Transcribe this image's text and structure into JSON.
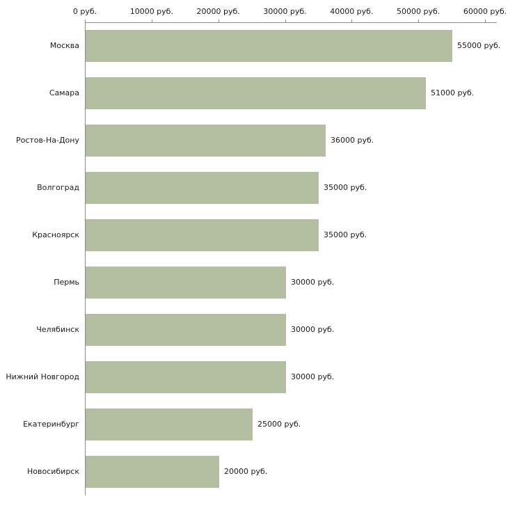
{
  "chart_data": {
    "type": "bar",
    "orientation": "horizontal",
    "title": "",
    "xlabel": "",
    "ylabel": "",
    "categories": [
      "Москва",
      "Самара",
      "Ростов-На-Дону",
      "Волгоград",
      "Красноярск",
      "Пермь",
      "Челябинск",
      "Нижний Новгород",
      "Екатеринбург",
      "Новосибирск"
    ],
    "values": [
      55000,
      51000,
      36000,
      35000,
      35000,
      30000,
      30000,
      30000,
      25000,
      20000
    ],
    "value_labels": [
      "55000 руб.",
      "51000 руб.",
      "36000 руб.",
      "35000 руб.",
      "35000 руб.",
      "30000 руб.",
      "30000 руб.",
      "30000 руб.",
      "25000 руб.",
      "20000 руб."
    ],
    "x_ticks": [
      0,
      10000,
      20000,
      30000,
      40000,
      50000,
      60000
    ],
    "x_tick_labels": [
      "0 руб.",
      "10000 руб.",
      "20000 руб.",
      "30000 руб.",
      "40000 руб.",
      "50000 руб.",
      "60000 руб."
    ],
    "xlim": [
      0,
      60000
    ],
    "axis_position": "top",
    "grid": false,
    "legend": "none",
    "bar_color": "#b3bda0",
    "axis_color": "#8c8c8c",
    "text_color": "#1a1a1a",
    "background_color": "#ffffff"
  }
}
